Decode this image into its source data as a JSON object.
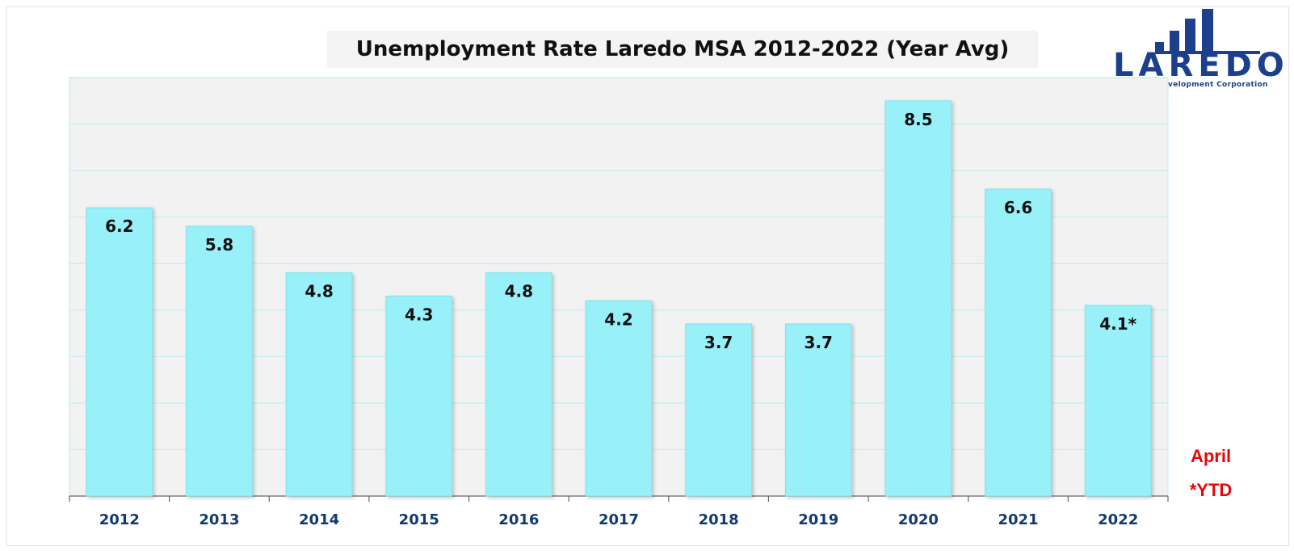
{
  "chart_data": {
    "type": "bar",
    "title": "Unemployment Rate Laredo MSA 2012-2022 (Year Avg)",
    "categories": [
      "2012",
      "2013",
      "2014",
      "2015",
      "2016",
      "2017",
      "2018",
      "2019",
      "2020",
      "2021",
      "2022"
    ],
    "values": [
      6.2,
      5.8,
      4.8,
      4.3,
      4.8,
      4.2,
      3.7,
      3.7,
      8.5,
      6.6,
      4.1
    ],
    "data_labels": [
      "6.2",
      "5.8",
      "4.8",
      "4.3",
      "4.8",
      "4.2",
      "3.7",
      "3.7",
      "8.5",
      "6.6",
      "4.1*"
    ],
    "xlabel": "",
    "ylabel": "",
    "ylim": [
      0,
      9
    ],
    "grid": true,
    "bar_color": "#98f1f8",
    "plot_background": "#f2f2f2",
    "gridline_color": "#c4ecf2",
    "tick_label_color": "#123a70"
  },
  "footnote": {
    "line1": "April",
    "line2": "*YTD",
    "color": "#e8060a"
  },
  "logo": {
    "name": "LAREDO",
    "tagline": "Economic Development Corporation",
    "color": "#1c3f8e"
  }
}
